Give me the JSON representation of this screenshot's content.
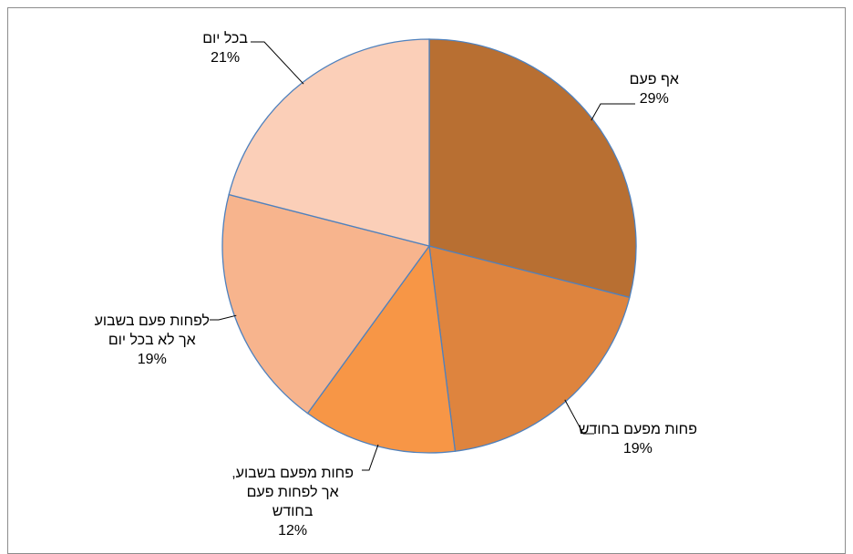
{
  "chart_data": {
    "type": "pie",
    "title": "",
    "legend": "none",
    "slices": [
      {
        "label_lines": [
          "אף פעם"
        ],
        "value": 29,
        "value_label": "29%",
        "color": "#b86f32"
      },
      {
        "label_lines": [
          "פחות מפעם בחודש"
        ],
        "value": 19,
        "value_label": "19%",
        "color": "#de843e"
      },
      {
        "label_lines": [
          "פחות מפעם בשבוע,",
          "אך לפחות פעם",
          "בחודש"
        ],
        "value": 12,
        "value_label": "12%",
        "color": "#f79646"
      },
      {
        "label_lines": [
          "לפחות פעם בשבוע",
          "אך לא בכל יום"
        ],
        "value": 19,
        "value_label": "19%",
        "color": "#f7b48d"
      },
      {
        "label_lines": [
          "בכל יום"
        ],
        "value": 21,
        "value_label": "21%",
        "color": "#fbcfb8"
      }
    ],
    "slice_border_color": "#4f81bd",
    "leader_line_color": "#000000"
  }
}
